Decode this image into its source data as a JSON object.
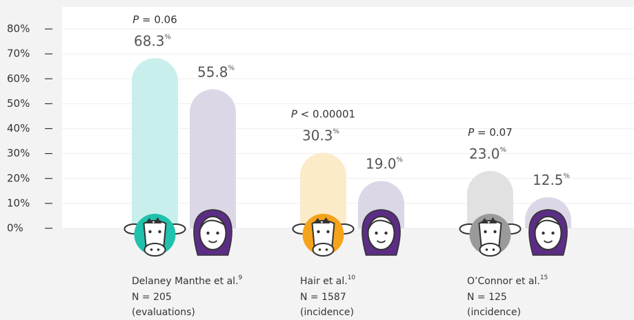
{
  "chart_data": {
    "type": "bar",
    "ylim": [
      0,
      80
    ],
    "yticks": [
      {
        "value": 0,
        "label": "0%"
      },
      {
        "value": 10,
        "label": "10%"
      },
      {
        "value": 20,
        "label": "20%"
      },
      {
        "value": 30,
        "label": "30%"
      },
      {
        "value": 40,
        "label": "40%"
      },
      {
        "value": 50,
        "label": "50%"
      },
      {
        "value": 60,
        "label": "60%"
      },
      {
        "value": 70,
        "label": "70%"
      },
      {
        "value": 80,
        "label": "80%"
      }
    ],
    "grid": true,
    "groups": [
      {
        "label": "Delaney Manthe et al.",
        "ref": "9",
        "n": "N = 205",
        "note": "(evaluations)",
        "p": "P = 0.06",
        "values": [
          68.3,
          55.8
        ],
        "value_labels": [
          "68.3%",
          "55.8%"
        ],
        "colors": [
          "#c9efec",
          "#dcd7e7"
        ],
        "icon_color": "#20c1ad"
      },
      {
        "label": "Hair et al.",
        "ref": "10",
        "n": "N = 1587",
        "note": "(incidence)",
        "p": "P < 0.00001",
        "values": [
          30.3,
          19.0
        ],
        "value_labels": [
          "30.3%",
          "19.0%"
        ],
        "colors": [
          "#fcebc9",
          "#dcd7e7"
        ],
        "icon_color": "#f5a31a"
      },
      {
        "label": "O’Connor et al.",
        "ref": "15",
        "n": "N = 125",
        "note": "(incidence)",
        "p": "P = 0.07",
        "values": [
          23.0,
          12.5
        ],
        "value_labels": [
          "23.0%",
          "12.5%"
        ],
        "colors": [
          "#e1e1e1",
          "#dcd7e7"
        ],
        "icon_color": "#9a9a9a"
      }
    ]
  }
}
